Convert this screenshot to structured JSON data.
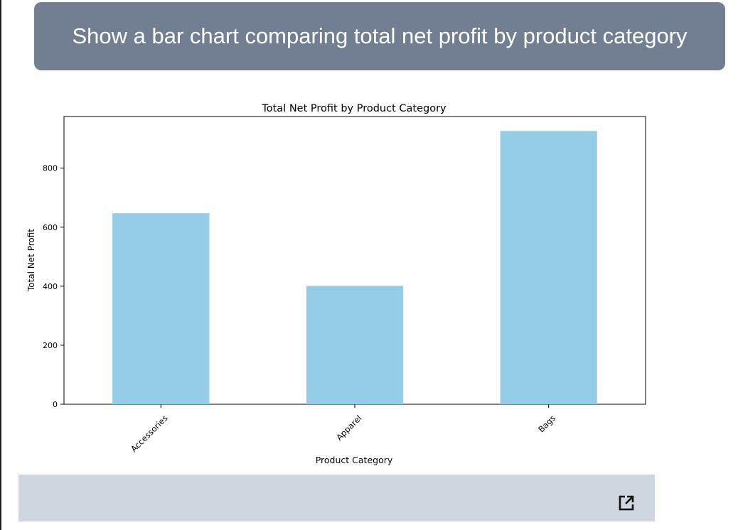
{
  "prompt": {
    "text": "Show a bar chart comparing total net profit by product category"
  },
  "colors": {
    "bubble": "#727f93",
    "bar": "#95cde8",
    "footer": "#ced6e0"
  },
  "chart_data": {
    "type": "bar",
    "title": "Total Net Profit by Product Category",
    "xlabel": "Product Category",
    "ylabel": "Total Net Profit",
    "categories": [
      "Accessories",
      "Apparel",
      "Bags"
    ],
    "values": [
      647,
      401,
      926
    ],
    "ylim": [
      0,
      975
    ],
    "yticks": [
      0,
      200,
      400,
      600,
      800
    ],
    "grid": false,
    "xtick_rotation": 45
  },
  "footer": {
    "open_icon": "external-link-icon"
  }
}
